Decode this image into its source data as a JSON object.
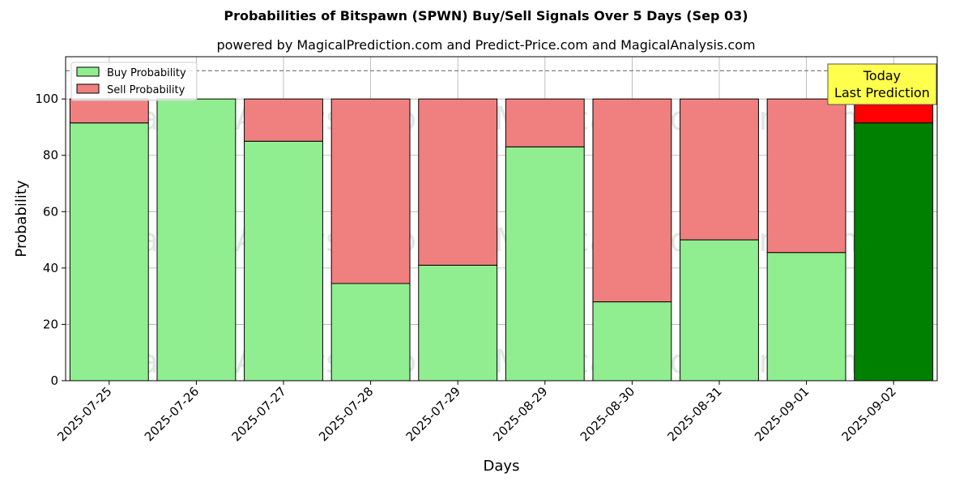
{
  "header": {
    "title": "Probabilities of Bitspawn (SPWN) Buy/Sell Signals Over 5 Days (Sep 03)",
    "subtitle": "powered by MagicalPrediction.com and Predict-Price.com and MagicalAnalysis.com"
  },
  "watermarks": [
    "MagicalAnalysis.com",
    "MagicalPrediction.com"
  ],
  "annotation": {
    "line1": "Today",
    "line2": "Last Prediction"
  },
  "colors": {
    "buy": "#90ee90",
    "sell": "#f08080",
    "buy_today": "#008000",
    "sell_today": "#ff0000",
    "annotation_bg": "#ffff4d",
    "grid": "#b0b0b0"
  },
  "chart_data": {
    "type": "bar",
    "stacked": true,
    "title": "Probabilities of Bitspawn (SPWN) Buy/Sell Signals Over 5 Days (Sep 03)",
    "xlabel": "Days",
    "ylabel": "Probability",
    "ylim": [
      0,
      115
    ],
    "yticks": [
      0,
      20,
      40,
      60,
      80,
      100
    ],
    "reference_line": 110,
    "grid": true,
    "legend_position": "top-left",
    "categories": [
      "2025-07-25",
      "2025-07-26",
      "2025-07-27",
      "2025-07-28",
      "2025-07-29",
      "2025-08-29",
      "2025-08-30",
      "2025-08-31",
      "2025-09-01",
      "2025-09-02"
    ],
    "series": [
      {
        "name": "Buy Probability",
        "values": [
          91.5,
          100,
          85,
          34.5,
          41,
          83,
          28,
          50,
          45.5,
          91.5
        ]
      },
      {
        "name": "Sell Probability",
        "values": [
          8.5,
          0,
          15,
          65.5,
          59,
          17,
          72,
          50,
          54.5,
          8.5
        ]
      }
    ]
  }
}
